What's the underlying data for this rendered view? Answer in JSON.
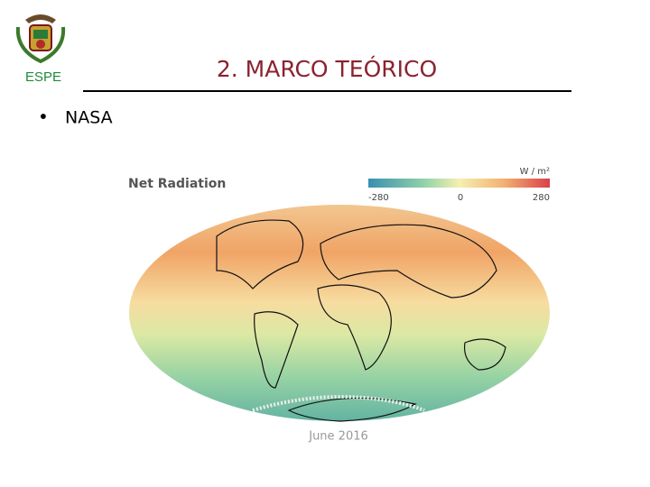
{
  "header": {
    "logo_text": "ESPE",
    "title": "2. MARCO TEÓRICO"
  },
  "bullets": [
    "NASA"
  ],
  "figure": {
    "title": "Net Radiation",
    "unit": "W / m²",
    "colorbar_labels": [
      -280,
      0,
      280
    ],
    "caption": "June 2016"
  }
}
